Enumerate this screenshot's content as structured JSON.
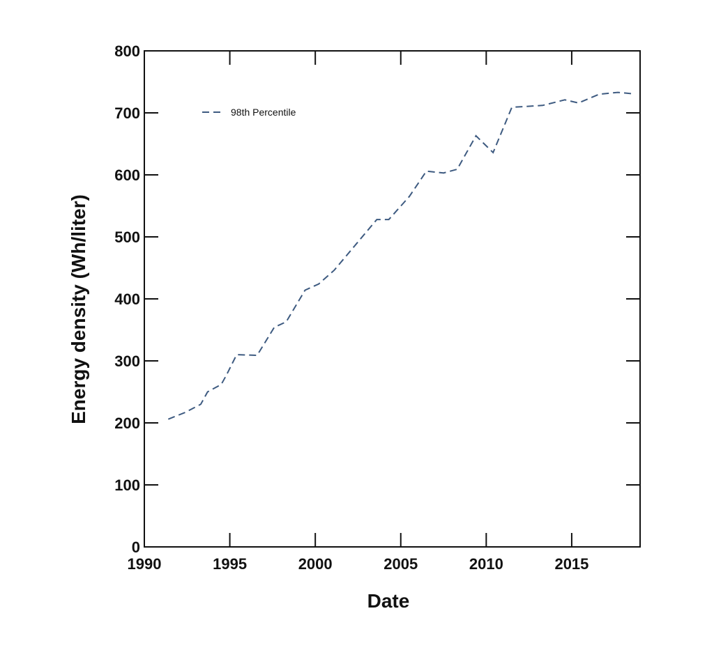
{
  "chart_data": {
    "type": "line",
    "title": "",
    "xlabel": "Date",
    "ylabel": "Energy density (Wh/liter)",
    "xlim": [
      1990,
      2019
    ],
    "ylim": [
      0,
      800
    ],
    "x_ticks": [
      1990,
      1995,
      2000,
      2005,
      2010,
      2015
    ],
    "y_ticks": [
      0,
      100,
      200,
      300,
      400,
      500,
      600,
      700,
      800
    ],
    "grid": false,
    "legend_position": "upper left",
    "series": [
      {
        "name": "98th Percentile",
        "color": "#3d5a80",
        "style": "dashed",
        "x": [
          1991.4,
          1992.4,
          1993.3,
          1993.7,
          1994.5,
          1994.8,
          1995.4,
          1996.6,
          1997.6,
          1998.3,
          1999.4,
          2000.2,
          2001.1,
          2003.6,
          2004.3,
          2005.5,
          2006.5,
          2007.5,
          2008.3,
          2009.4,
          2010.4,
          2011.5,
          2013.3,
          2014.6,
          2015.4,
          2016.6,
          2017.7,
          2018.5
        ],
        "y": [
          206,
          217,
          230,
          250,
          262,
          277,
          310,
          309,
          354,
          363,
          414,
          424,
          446,
          528,
          528,
          565,
          606,
          603,
          609,
          663,
          636,
          709,
          712,
          721,
          716,
          730,
          733,
          731
        ]
      }
    ]
  }
}
